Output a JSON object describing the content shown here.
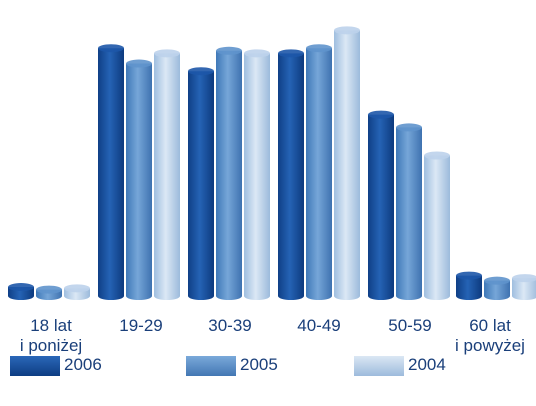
{
  "chart_data": {
    "type": "bar",
    "categories": [
      "18 lat\ni poniżej",
      "19-29",
      "30-39",
      "40-49",
      "50-59",
      "60 lat\ni powyżej"
    ],
    "series": [
      {
        "name": "2006",
        "values": [
          3.5,
          97,
          88,
          95,
          71,
          8
        ],
        "color": "#1d57a8"
      },
      {
        "name": "2005",
        "values": [
          2.5,
          91,
          96,
          97,
          66,
          6
        ],
        "color": "#5f93cc"
      },
      {
        "name": "2004",
        "values": [
          3,
          95,
          95,
          104,
          55,
          7
        ],
        "color": "#bcd2eb"
      }
    ],
    "ylim": [
      0,
      110
    ],
    "grid": false,
    "legend_position": "bottom"
  }
}
